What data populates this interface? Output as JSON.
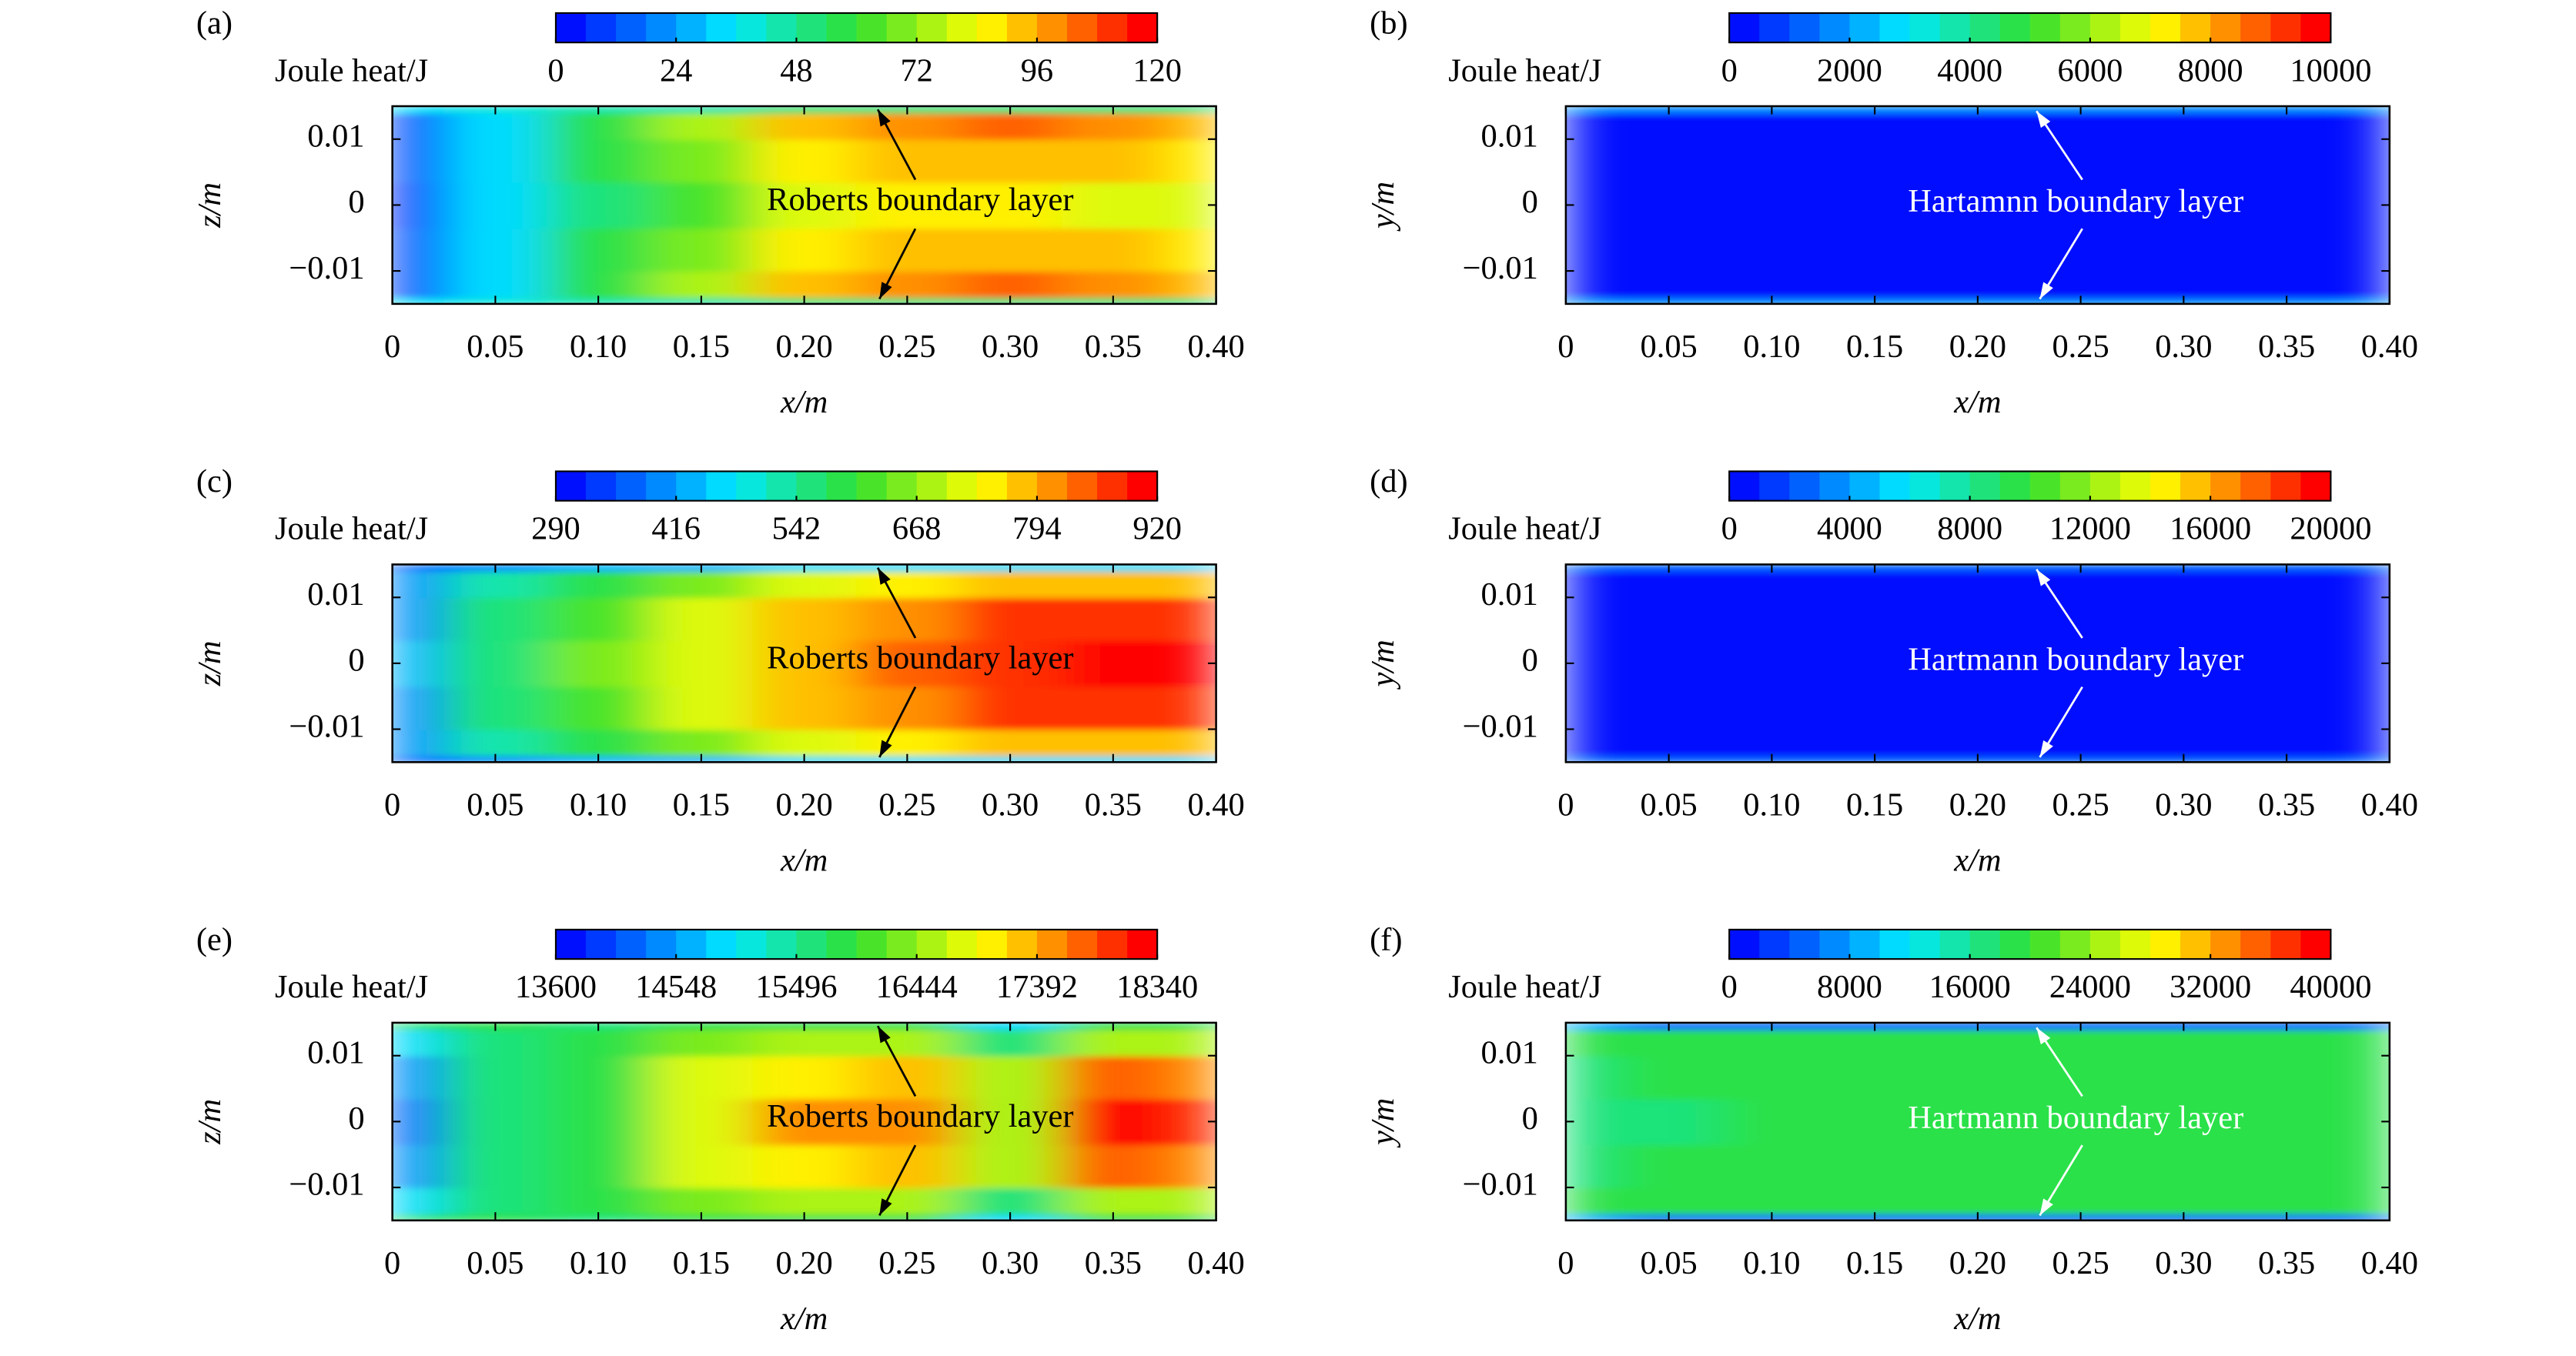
{
  "chart_data": [
    {
      "type": "contour",
      "panel_label": "(a)",
      "colorbar_label": "Joule heat/J",
      "clim": [
        0,
        120
      ],
      "cticks": [
        0,
        24,
        48,
        72,
        96,
        120
      ],
      "xlabel": "x/m",
      "ylabel": "z/m",
      "xlim": [
        0,
        0.4
      ],
      "ylim": [
        -0.015,
        0.015
      ],
      "xticks": [
        0,
        0.05,
        {
          "value": 0.1,
          "label": "0.10"
        },
        0.15,
        {
          "value": 0.2,
          "label": "0.20"
        },
        0.25,
        {
          "value": 0.3,
          "label": "0.30"
        },
        0.35,
        {
          "value": 0.4,
          "label": "0.40"
        }
      ],
      "yticks": [
        {
          "value": -0.01,
          "label": "−0.01"
        },
        0,
        0.01
      ],
      "x": [
        0,
        0.05,
        0.1,
        0.15,
        0.2,
        0.25,
        0.3,
        0.35,
        0.4
      ],
      "y": [
        -0.015,
        -0.013,
        -0.007,
        0,
        0.007,
        0.013,
        0.015
      ],
      "z": [
        [
          30,
          38,
          42,
          46,
          50,
          50,
          50,
          50,
          50
        ],
        [
          10,
          35,
          55,
          75,
          90,
          100,
          105,
          100,
          95
        ],
        [
          8,
          35,
          55,
          70,
          85,
          92,
          92,
          90,
          88
        ],
        [
          5,
          32,
          52,
          65,
          78,
          85,
          85,
          82,
          80
        ],
        [
          8,
          35,
          55,
          70,
          85,
          92,
          92,
          90,
          88
        ],
        [
          10,
          35,
          55,
          75,
          90,
          100,
          105,
          100,
          95
        ],
        [
          30,
          38,
          42,
          46,
          50,
          50,
          50,
          50,
          50
        ]
      ],
      "annotation": "Roberts boundary layer",
      "annotation_color": "#000000"
    },
    {
      "type": "contour",
      "panel_label": "(b)",
      "colorbar_label": "Joule heat/J",
      "clim": [
        0,
        10000
      ],
      "cticks": [
        0,
        2000,
        4000,
        6000,
        8000,
        10000
      ],
      "xlabel": "x/m",
      "ylabel": "y/m",
      "xlim": [
        0,
        0.4
      ],
      "ylim": [
        -0.015,
        0.015
      ],
      "xticks": [
        0,
        0.05,
        {
          "value": 0.1,
          "label": "0.10"
        },
        0.15,
        {
          "value": 0.2,
          "label": "0.20"
        },
        0.25,
        {
          "value": 0.3,
          "label": "0.30"
        },
        0.35,
        {
          "value": 0.4,
          "label": "0.40"
        }
      ],
      "yticks": [
        {
          "value": -0.01,
          "label": "−0.01"
        },
        0,
        0.01
      ],
      "x": [
        0,
        0.05,
        0.1,
        0.15,
        0.2,
        0.25,
        0.3,
        0.35,
        0.4
      ],
      "y": [
        -0.015,
        -0.013,
        -0.007,
        0,
        0.007,
        0.013,
        0.015
      ],
      "z": [
        [
          1500,
          1500,
          1500,
          1500,
          1500,
          1500,
          1500,
          1500,
          1500
        ],
        [
          200,
          200,
          200,
          200,
          200,
          200,
          200,
          200,
          200
        ],
        [
          150,
          150,
          150,
          150,
          150,
          150,
          150,
          150,
          150
        ],
        [
          150,
          150,
          150,
          150,
          150,
          150,
          150,
          150,
          150
        ],
        [
          150,
          150,
          150,
          150,
          150,
          150,
          150,
          150,
          150
        ],
        [
          200,
          200,
          200,
          200,
          200,
          200,
          200,
          200,
          200
        ],
        [
          1500,
          1500,
          1500,
          1500,
          1500,
          1500,
          1500,
          1500,
          1500
        ]
      ],
      "annotation": "Hartamnn boundary layer",
      "annotation_color": "#ffffff"
    },
    {
      "type": "contour",
      "panel_label": "(c)",
      "colorbar_label": "Joule heat/J",
      "clim": [
        290,
        920
      ],
      "cticks": [
        290,
        416,
        542,
        668,
        794,
        920
      ],
      "xlabel": "x/m",
      "ylabel": "z/m",
      "xlim": [
        0,
        0.4
      ],
      "ylim": [
        -0.015,
        0.015
      ],
      "xticks": [
        0,
        0.05,
        {
          "value": 0.1,
          "label": "0.10"
        },
        0.15,
        {
          "value": 0.2,
          "label": "0.20"
        },
        0.25,
        {
          "value": 0.3,
          "label": "0.30"
        },
        0.35,
        {
          "value": 0.4,
          "label": "0.40"
        }
      ],
      "yticks": [
        {
          "value": -0.01,
          "label": "−0.01"
        },
        0,
        0.01
      ],
      "x": [
        0,
        0.05,
        0.1,
        0.15,
        0.2,
        0.25,
        0.3,
        0.35,
        0.4
      ],
      "y": [
        -0.015,
        -0.013,
        -0.007,
        0,
        0.007,
        0.013,
        0.015
      ],
      "z": [
        [
          380,
          400,
          420,
          440,
          450,
          460,
          460,
          460,
          460
        ],
        [
          400,
          520,
          600,
          660,
          720,
          760,
          780,
          790,
          790
        ],
        [
          410,
          550,
          630,
          700,
          770,
          820,
          860,
          880,
          885
        ],
        [
          420,
          560,
          640,
          720,
          790,
          840,
          880,
          910,
          915
        ],
        [
          410,
          550,
          630,
          700,
          770,
          820,
          860,
          880,
          885
        ],
        [
          400,
          520,
          600,
          660,
          720,
          760,
          780,
          790,
          790
        ],
        [
          380,
          400,
          420,
          440,
          450,
          460,
          460,
          460,
          460
        ]
      ],
      "annotation": "Roberts boundary layer",
      "annotation_color": "#000000"
    },
    {
      "type": "contour",
      "panel_label": "(d)",
      "colorbar_label": "Joule heat/J",
      "clim": [
        0,
        20000
      ],
      "cticks": [
        0,
        4000,
        8000,
        12000,
        16000,
        20000
      ],
      "xlabel": "x/m",
      "ylabel": "y/m",
      "xlim": [
        0,
        0.4
      ],
      "ylim": [
        -0.015,
        0.015
      ],
      "xticks": [
        0,
        0.05,
        {
          "value": 0.1,
          "label": "0.10"
        },
        0.15,
        {
          "value": 0.2,
          "label": "0.20"
        },
        0.25,
        {
          "value": 0.3,
          "label": "0.30"
        },
        0.35,
        {
          "value": 0.4,
          "label": "0.40"
        }
      ],
      "yticks": [
        {
          "value": -0.01,
          "label": "−0.01"
        },
        0,
        0.01
      ],
      "x": [
        0,
        0.05,
        0.1,
        0.15,
        0.2,
        0.25,
        0.3,
        0.35,
        0.4
      ],
      "y": [
        -0.015,
        -0.013,
        -0.007,
        0,
        0.007,
        0.013,
        0.015
      ],
      "z": [
        [
          2500,
          2500,
          2500,
          2500,
          2500,
          2500,
          2500,
          2500,
          2500
        ],
        [
          300,
          300,
          300,
          300,
          300,
          300,
          300,
          300,
          300
        ],
        [
          250,
          250,
          250,
          250,
          250,
          250,
          250,
          250,
          250
        ],
        [
          250,
          250,
          250,
          250,
          250,
          250,
          250,
          250,
          250
        ],
        [
          250,
          250,
          250,
          250,
          250,
          250,
          250,
          250,
          250
        ],
        [
          300,
          300,
          300,
          300,
          300,
          300,
          300,
          300,
          300
        ],
        [
          2500,
          2500,
          2500,
          2500,
          2500,
          2500,
          2500,
          2500,
          2500
        ]
      ],
      "annotation": "Hartmann boundary layer",
      "annotation_color": "#ffffff"
    },
    {
      "type": "contour",
      "panel_label": "(e)",
      "colorbar_label": "Joule heat/J",
      "clim": [
        13600,
        18340
      ],
      "cticks": [
        13600,
        14548,
        15496,
        16444,
        17392,
        18340
      ],
      "xlabel": "x/m",
      "ylabel": "z/m",
      "xlim": [
        0,
        0.4
      ],
      "ylim": [
        -0.015,
        0.015
      ],
      "xticks": [
        0,
        0.05,
        {
          "value": 0.1,
          "label": "0.10"
        },
        0.15,
        {
          "value": 0.2,
          "label": "0.20"
        },
        0.25,
        {
          "value": 0.3,
          "label": "0.30"
        },
        0.35,
        {
          "value": 0.4,
          "label": "0.40"
        }
      ],
      "yticks": [
        {
          "value": -0.01,
          "label": "−0.01"
        },
        0,
        0.01
      ],
      "x": [
        0,
        0.05,
        0.1,
        0.15,
        0.2,
        0.25,
        0.3,
        0.35,
        0.4
      ],
      "y": [
        -0.015,
        -0.013,
        -0.007,
        0,
        0.007,
        0.013,
        0.015
      ],
      "z": [
        [
          15600,
          15800,
          15700,
          15800,
          15900,
          15900,
          15000,
          15900,
          15800
        ],
        [
          15000,
          15700,
          15800,
          16300,
          16500,
          16600,
          15700,
          16600,
          16500
        ],
        [
          14400,
          15600,
          15900,
          16800,
          17100,
          17200,
          16500,
          17800,
          17600
        ],
        [
          14200,
          15600,
          15900,
          16900,
          17400,
          17500,
          16600,
          18200,
          17900
        ],
        [
          14400,
          15600,
          15900,
          16800,
          17100,
          17200,
          16500,
          17800,
          17600
        ],
        [
          15000,
          15700,
          15800,
          16300,
          16500,
          16600,
          15700,
          16600,
          16500
        ],
        [
          15600,
          15800,
          15700,
          15800,
          15900,
          15900,
          15000,
          15900,
          15800
        ]
      ],
      "annotation": "Roberts boundary layer",
      "annotation_color": "#000000"
    },
    {
      "type": "contour",
      "panel_label": "(f)",
      "colorbar_label": "Joule heat/J",
      "clim": [
        0,
        40000
      ],
      "cticks": [
        0,
        8000,
        16000,
        24000,
        32000,
        40000
      ],
      "xlabel": "x/m",
      "ylabel": "y/m",
      "xlim": [
        0,
        0.4
      ],
      "ylim": [
        -0.015,
        0.015
      ],
      "xticks": [
        0,
        0.05,
        {
          "value": 0.1,
          "label": "0.10"
        },
        0.15,
        {
          "value": 0.2,
          "label": "0.20"
        },
        0.25,
        {
          "value": 0.3,
          "label": "0.30"
        },
        0.35,
        {
          "value": 0.4,
          "label": "0.40"
        }
      ],
      "yticks": [
        {
          "value": -0.01,
          "label": "−0.01"
        },
        0,
        0.01
      ],
      "x": [
        0,
        0.05,
        0.1,
        0.15,
        0.2,
        0.25,
        0.3,
        0.35,
        0.4
      ],
      "y": [
        -0.015,
        -0.013,
        -0.007,
        0,
        0.007,
        0.013,
        0.015
      ],
      "z": [
        [
          8000,
          4000,
          4000,
          4000,
          4000,
          4000,
          4000,
          4000,
          4000
        ],
        [
          18000,
          19000,
          19000,
          19500,
          19500,
          19500,
          19500,
          19500,
          19500
        ],
        [
          17000,
          18000,
          18500,
          19000,
          19500,
          19500,
          19500,
          19500,
          19500
        ],
        [
          16000,
          17000,
          18000,
          18500,
          19000,
          19000,
          19000,
          19500,
          19500
        ],
        [
          17000,
          18000,
          18500,
          19000,
          19500,
          19500,
          19500,
          19500,
          19500
        ],
        [
          18000,
          19000,
          19000,
          19500,
          19500,
          19500,
          19500,
          19500,
          19500
        ],
        [
          8000,
          4000,
          4000,
          4000,
          4000,
          4000,
          4000,
          4000,
          4000
        ]
      ],
      "annotation": "Hartmann boundary layer",
      "annotation_color": "#ffffff"
    }
  ]
}
